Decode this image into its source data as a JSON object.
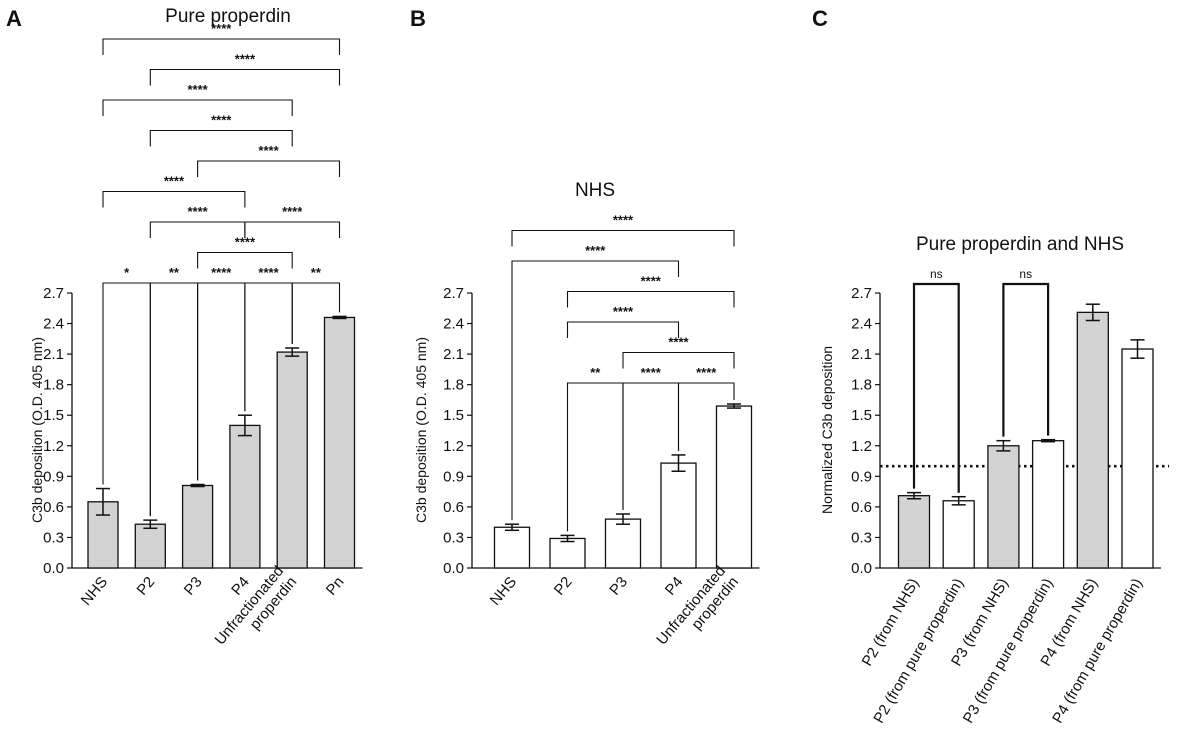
{
  "figure": {
    "panel_letters": [
      "A",
      "B",
      "C"
    ]
  },
  "colors": {
    "gray_bar": "#d3d3d3",
    "white_bar": "#ffffff",
    "stroke": "#111111"
  },
  "chart_data": [
    {
      "type": "bar",
      "panel": "A",
      "title": "Pure properdin",
      "ylabel": "C3b deposition (O.D. 405 nm)",
      "xlabel": "",
      "ylim": [
        0,
        2.7
      ],
      "yticks": [
        "0.0",
        "0.3",
        "0.6",
        "0.9",
        "1.2",
        "1.5",
        "1.8",
        "2.1",
        "2.4",
        "2.7"
      ],
      "categories": [
        "NHS",
        "P2",
        "P3",
        "P4",
        "Unfractionated properdin",
        "Pn"
      ],
      "category_lines": [
        [
          "NHS"
        ],
        [
          "P2"
        ],
        [
          "P3"
        ],
        [
          "P4"
        ],
        [
          "Unfractionated",
          "properdin"
        ],
        [
          "Pn"
        ]
      ],
      "values": [
        0.65,
        0.43,
        0.81,
        1.4,
        2.12,
        2.46
      ],
      "errors": [
        0.13,
        0.04,
        0.01,
        0.1,
        0.04,
        0.01
      ],
      "fills": [
        "gray",
        "gray",
        "gray",
        "gray",
        "gray",
        "gray"
      ],
      "comparisons": [
        {
          "a": 0,
          "b": 1,
          "label": "*",
          "level": 0
        },
        {
          "a": 1,
          "b": 2,
          "label": "**",
          "level": 0
        },
        {
          "a": 2,
          "b": 3,
          "label": "****",
          "level": 0
        },
        {
          "a": 3,
          "b": 4,
          "label": "****",
          "level": 0
        },
        {
          "a": 4,
          "b": 5,
          "label": "**",
          "level": 0
        },
        {
          "a": 2,
          "b": 4,
          "label": "****",
          "level": 1
        },
        {
          "a": 1,
          "b": 3,
          "label": "****",
          "level": 2
        },
        {
          "a": 3,
          "b": 5,
          "label": "****",
          "level": 2
        },
        {
          "a": 0,
          "b": 3,
          "label": "****",
          "level": 3
        },
        {
          "a": 2,
          "b": 5,
          "label": "****",
          "level": 4
        },
        {
          "a": 1,
          "b": 4,
          "label": "****",
          "level": 5
        },
        {
          "a": 0,
          "b": 4,
          "label": "****",
          "level": 6
        },
        {
          "a": 1,
          "b": 5,
          "label": "****",
          "level": 7
        },
        {
          "a": 0,
          "b": 5,
          "label": "****",
          "level": 8
        }
      ]
    },
    {
      "type": "bar",
      "panel": "B",
      "title": "NHS",
      "ylabel": "C3b deposition (O.D. 405 nm)",
      "xlabel": "",
      "ylim": [
        0,
        2.7
      ],
      "yticks": [
        "0.0",
        "0.3",
        "0.6",
        "0.9",
        "1.2",
        "1.5",
        "1.8",
        "2.1",
        "2.4",
        "2.7"
      ],
      "categories": [
        "NHS",
        "P2",
        "P3",
        "P4",
        "Unfractionated properdin"
      ],
      "category_lines": [
        [
          "NHS"
        ],
        [
          "P2"
        ],
        [
          "P3"
        ],
        [
          "P4"
        ],
        [
          "Unfractionated",
          "properdin"
        ]
      ],
      "values": [
        0.4,
        0.29,
        0.48,
        1.03,
        1.59
      ],
      "errors": [
        0.03,
        0.03,
        0.05,
        0.08,
        0.02
      ],
      "fills": [
        "white",
        "white",
        "white",
        "white",
        "white"
      ],
      "comparisons": [
        {
          "a": 1,
          "b": 2,
          "label": "**",
          "level": 0
        },
        {
          "a": 2,
          "b": 3,
          "label": "****",
          "level": 0
        },
        {
          "a": 3,
          "b": 4,
          "label": "****",
          "level": 0
        },
        {
          "a": 2,
          "b": 4,
          "label": "****",
          "level": 1
        },
        {
          "a": 1,
          "b": 3,
          "label": "****",
          "level": 2
        },
        {
          "a": 1,
          "b": 4,
          "label": "****",
          "level": 3
        },
        {
          "a": 0,
          "b": 3,
          "label": "****",
          "level": 4
        },
        {
          "a": 0,
          "b": 4,
          "label": "****",
          "level": 5
        }
      ]
    },
    {
      "type": "bar",
      "panel": "C",
      "title": "Pure properdin and NHS",
      "ylabel": "Normalized C3b deposition",
      "xlabel": "",
      "ylim": [
        0,
        2.7
      ],
      "yticks": [
        "0.0",
        "0.3",
        "0.6",
        "0.9",
        "1.2",
        "1.5",
        "1.8",
        "2.1",
        "2.4",
        "2.7"
      ],
      "categories": [
        "P2 (from NHS)",
        "P2 (from pure properdin)",
        "P3 (from NHS)",
        "P3 (from pure properdin)",
        "P4 (from NHS)",
        "P4 (from pure properdin)"
      ],
      "category_lines": [
        [
          "P2 (from NHS)"
        ],
        [
          "P2 (from pure properdin)"
        ],
        [
          "P3 (from NHS)"
        ],
        [
          "P3 (from pure properdin)"
        ],
        [
          "P4 (from NHS)"
        ],
        [
          "P4 (from pure properdin)"
        ]
      ],
      "values": [
        0.71,
        0.66,
        1.2,
        1.25,
        2.51,
        2.15
      ],
      "errors": [
        0.03,
        0.04,
        0.05,
        0.01,
        0.08,
        0.09
      ],
      "fills": [
        "gray",
        "white",
        "gray",
        "white",
        "gray",
        "white"
      ],
      "reference_line": 1.0,
      "comparisons": [
        {
          "a": 0,
          "b": 1,
          "label": "ns",
          "level": 0
        },
        {
          "a": 2,
          "b": 3,
          "label": "ns",
          "level": 0
        }
      ]
    }
  ]
}
